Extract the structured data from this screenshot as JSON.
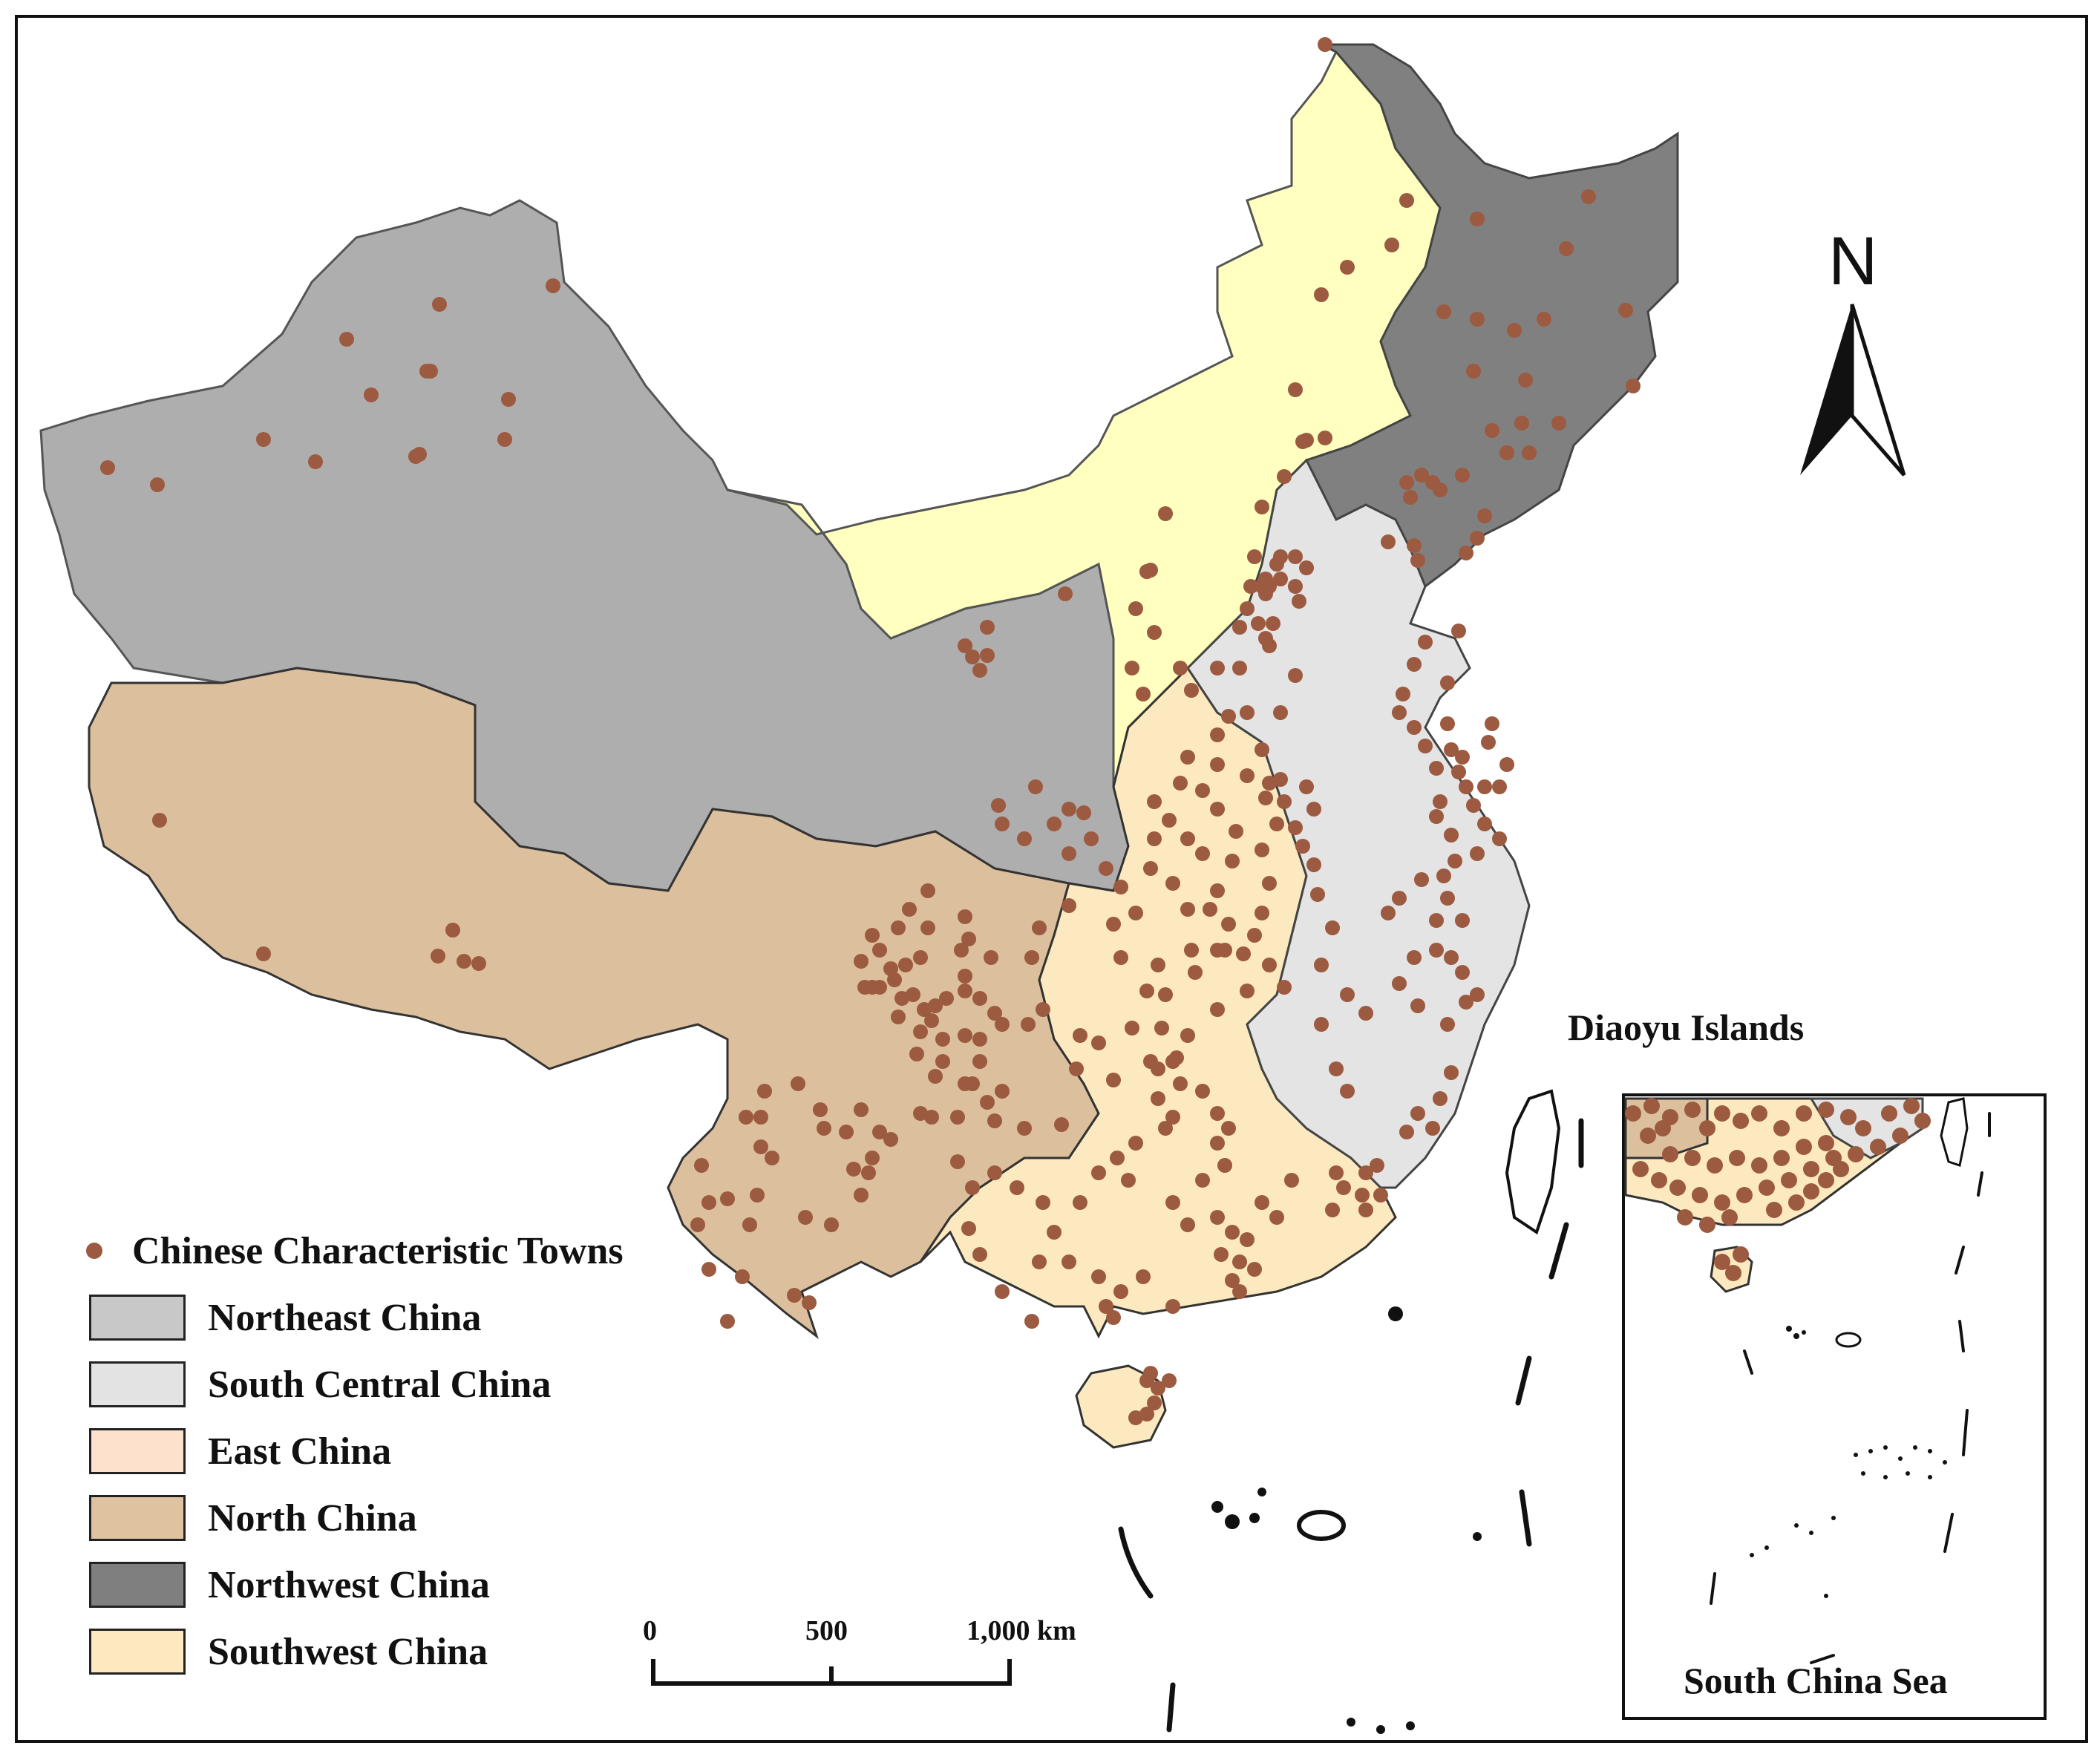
{
  "legend": {
    "points_label": "Chinese Characteristic Towns",
    "regions": [
      {
        "label": "Northeast China",
        "color": "#c8c8c8"
      },
      {
        "label": "South Central China",
        "color": "#e3e3e3"
      },
      {
        "label": "East China",
        "color": "#fde1cc"
      },
      {
        "label": "North China",
        "color": "#dfc3a0"
      },
      {
        "label": "Northwest China",
        "color": "#7f7f7f"
      },
      {
        "label": "Southwest China",
        "color": "#fde9bf"
      }
    ]
  },
  "colors": {
    "town_dot": "#9c5a40",
    "inner_mongolia_area": "#ffffc0",
    "xinjiang_qinghai_gansu_area": "#aeaeae",
    "tibet_sichuan_yunnan_area": "#dcc09d",
    "central_south_area": "#fde9bf",
    "east_coast_area": "#e4e4e4",
    "northeast_area": "#808080"
  },
  "labels": {
    "north_arrow": "N",
    "diaoyu": "Diaoyu Islands",
    "south_china_sea": "South China Sea"
  },
  "scale_bar": {
    "ticks": [
      "0",
      "500",
      "1,000 km"
    ]
  }
}
